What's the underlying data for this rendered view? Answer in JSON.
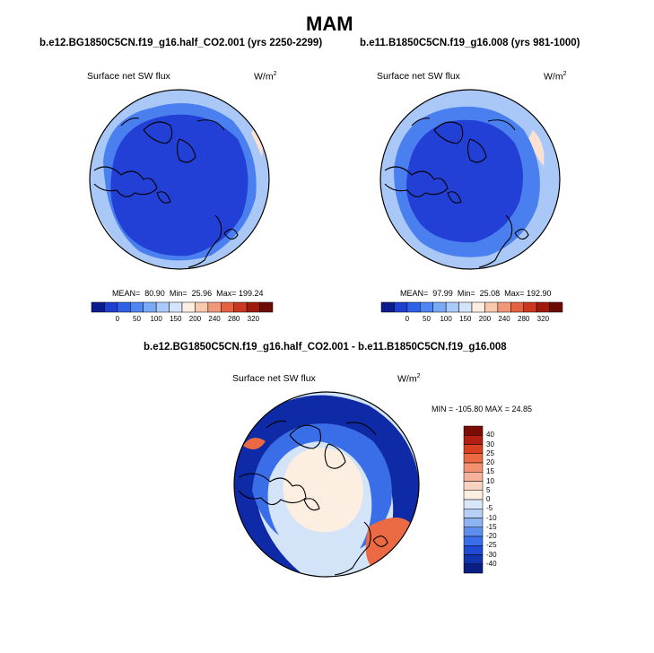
{
  "figure": {
    "season": "MAM"
  },
  "panel_left": {
    "case": "b.e12.BG1850C5CN.f19_g16.half_CO2.001 (yrs 2250-2299)",
    "variable": "Surface net SW flux",
    "units_base": "W/m",
    "units_exp": "2",
    "mean_label": "MEAN=",
    "mean_value": "80.90",
    "min_label": "Min=",
    "min_value": "25.96",
    "max_label": "Max=",
    "max_value": "199.24"
  },
  "panel_right": {
    "case": "b.e11.B1850C5CN.f19_g16.008 (yrs 981-1000)",
    "variable": "Surface net SW flux",
    "units_base": "W/m",
    "units_exp": "2",
    "mean_label": "MEAN=",
    "mean_value": "97.99",
    "min_label": "Min=",
    "min_value": "25.08",
    "max_label": "Max=",
    "max_value": "192.90"
  },
  "panel_diff": {
    "case": "b.e12.BG1850C5CN.f19_g16.half_CO2.001 - b.e11.B1850C5CN.f19_g16.008",
    "variable": "Surface net SW flux",
    "units_base": "W/m",
    "units_exp": "2",
    "minmax_text": "MIN = -105.80 MAX =  24.85"
  },
  "colorbar_abs": {
    "ticks": [
      "0",
      "50",
      "100",
      "150",
      "200",
      "240",
      "280",
      "320"
    ],
    "colors": [
      "#0b1a8c",
      "#1e3fd0",
      "#2f60e8",
      "#4d86f2",
      "#7aa9f5",
      "#a9c9f8",
      "#d4e4fa",
      "#fdeee2",
      "#f8c9ad",
      "#f2987a",
      "#e4623f",
      "#c9381f",
      "#a11a0c",
      "#6e0a04"
    ]
  },
  "colorbar_diff": {
    "ticks": [
      "40",
      "30",
      "25",
      "20",
      "15",
      "10",
      "5",
      "0",
      "-5",
      "-10",
      "-15",
      "-20",
      "-25",
      "-30",
      "-40"
    ],
    "colors": [
      "#7a0b05",
      "#b01f0f",
      "#d9401f",
      "#ec6a43",
      "#f39070",
      "#f6b39a",
      "#f9d3c2",
      "#fdeee2",
      "#d8e6f8",
      "#b7d0f6",
      "#8db3f2",
      "#5e8ff0",
      "#3a6ee8",
      "#1f4bd2",
      "#1233ae",
      "#0a1d85"
    ]
  },
  "map_colors": {
    "abs_base": "#2340d6",
    "abs_mid": "#4a7ff0",
    "abs_light": "#a9c8f7",
    "abs_pale": "#d6e6fb",
    "abs_warm": "#fde2d2",
    "diff_base": "#d3e3f8",
    "diff_pale": "#fdeee2",
    "diff_blue": "#3a6ee8",
    "diff_navy": "#0f2aa6",
    "diff_red": "#ec6a43"
  }
}
